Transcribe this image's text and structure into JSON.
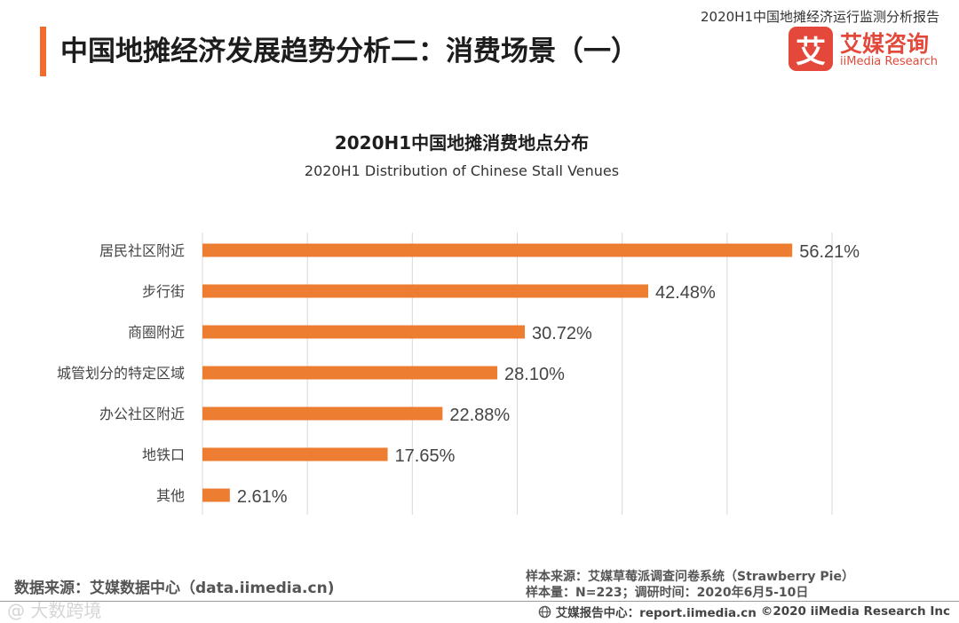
{
  "header": {
    "report_name": "2020H1中国地摊经济运行监测分析报告",
    "page_title": "中国地摊经济发展趋势分析二：消费场景（一）"
  },
  "logo": {
    "mark": "艾",
    "name_cn": "艾媒咨询",
    "name_en": "iiMedia Research"
  },
  "colors": {
    "accent": "#f26a2c",
    "bar": "#ed7d31",
    "brand": "#e3483a",
    "grid": "#d9d9d9"
  },
  "chart_data": {
    "type": "bar",
    "orientation": "horizontal",
    "title": "2020H1中国地摊消费地点分布",
    "subtitle": "2020H1 Distribution of Chinese Stall Venues",
    "categories": [
      "居民社区附近",
      "步行街",
      "商圈附近",
      "城管划分的特定区域",
      "办公社区附近",
      "地铁口",
      "其他"
    ],
    "values": [
      56.21,
      42.48,
      30.72,
      28.1,
      22.88,
      17.65,
      2.61
    ],
    "value_labels": [
      "56.21%",
      "42.48%",
      "30.72%",
      "28.10%",
      "22.88%",
      "17.65%",
      "2.61%"
    ],
    "unit": "%",
    "xlim": [
      0,
      60
    ],
    "grid_step": 10,
    "grid": true,
    "axis_ticks_shown": false
  },
  "footer": {
    "data_source": "数据来源：艾媒数据中心（data.iimedia.cn)",
    "sample_source": "样本来源：艾媒草莓派调查问卷系统（Strawberry Pie）",
    "sample_size": "样本量：N=223；调研时间：2020年6月5-10日",
    "report_center": "艾媒报告中心：report.iimedia.cn",
    "copyright": "©2020  iiMedia Research  Inc",
    "watermark": "@ 大数跨境"
  }
}
